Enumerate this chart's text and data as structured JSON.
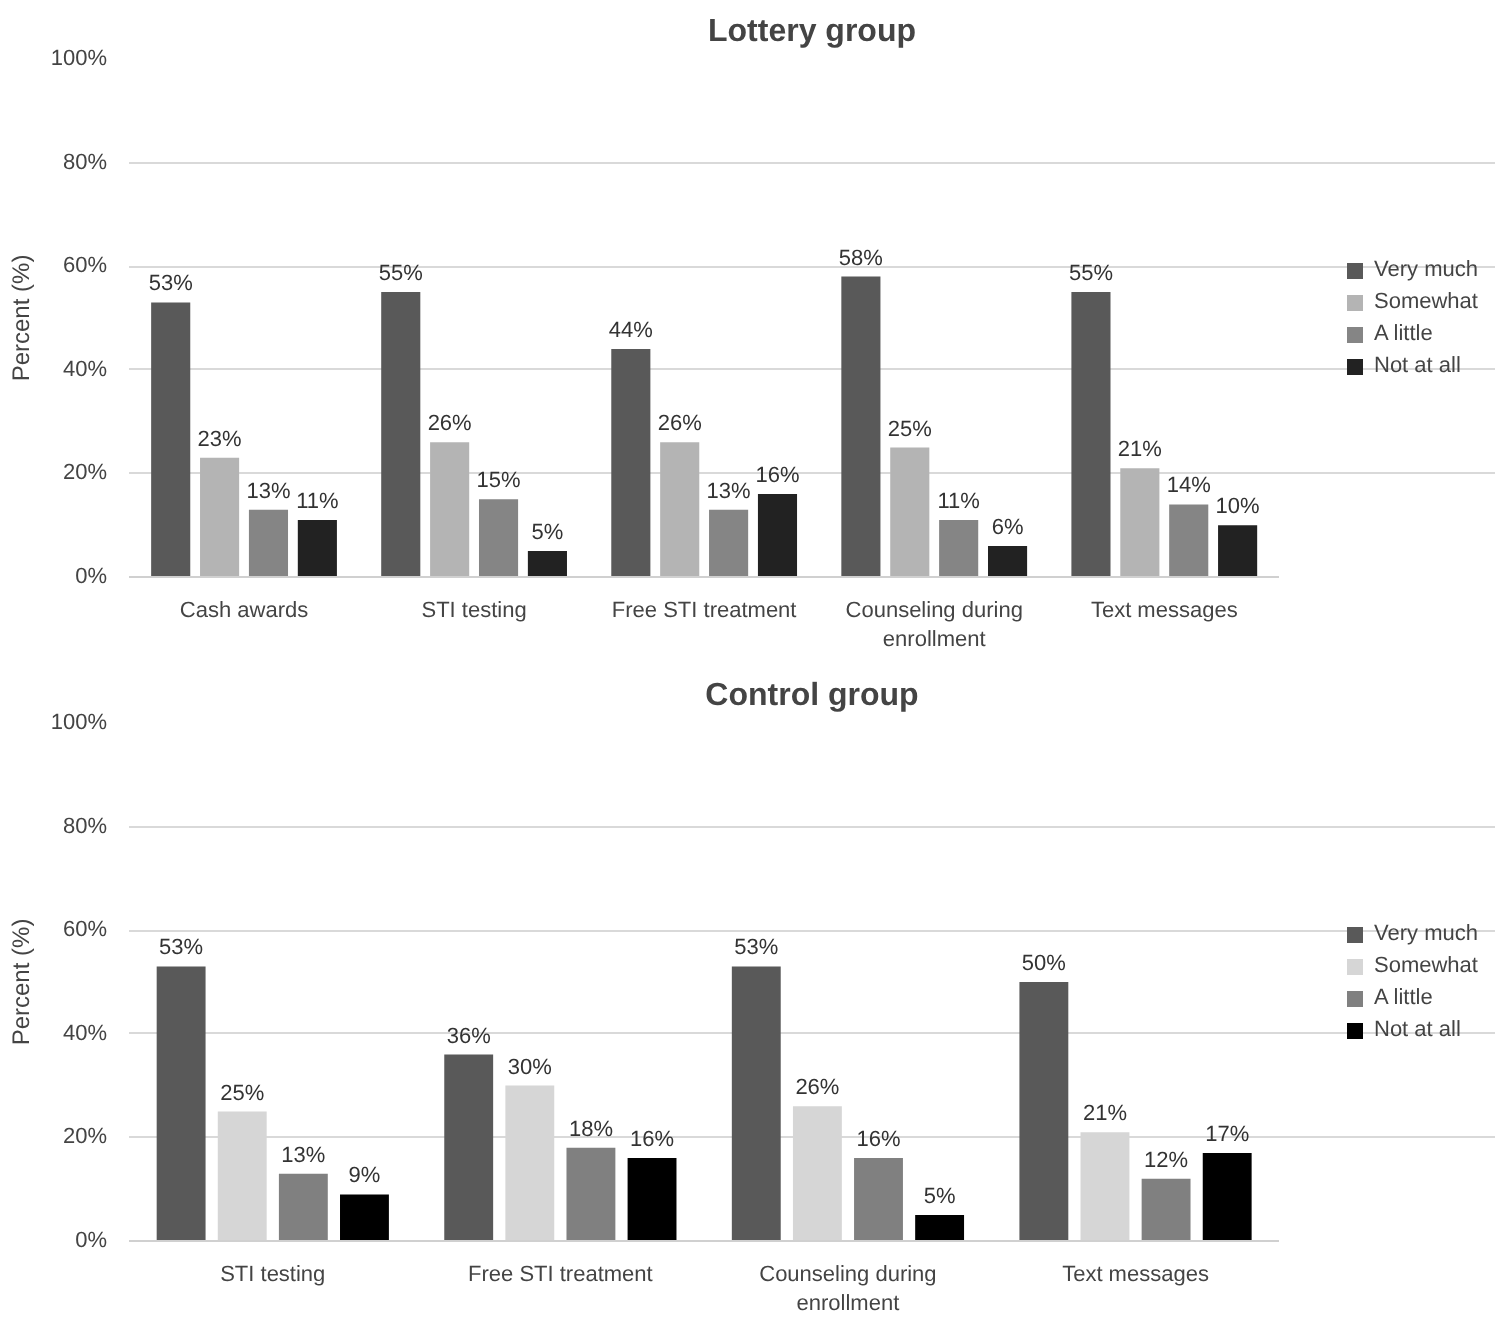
{
  "chart_data": [
    {
      "type": "bar",
      "title": "Lottery group",
      "ylabel": "Percent (%)",
      "categories": [
        "Cash awards",
        "STI testing",
        "Free STI treatment",
        "Counseling during\nenrollment",
        "Text messages"
      ],
      "series": [
        {
          "name": "Very much",
          "color": "#595959",
          "values": [
            53,
            55,
            44,
            58,
            55
          ],
          "value_labels": [
            "53%",
            "55%",
            "44%",
            "58%",
            "55%"
          ]
        },
        {
          "name": "Somewhat",
          "color": "#b4b4b4",
          "values": [
            23,
            26,
            26,
            25,
            21
          ],
          "value_labels": [
            "23%",
            "26%",
            "26%",
            "25%",
            "21%"
          ]
        },
        {
          "name": "A little",
          "color": "#858585",
          "values": [
            13,
            15,
            13,
            11,
            14
          ],
          "value_labels": [
            "13%",
            "15%",
            "13%",
            "11%",
            "14%"
          ]
        },
        {
          "name": "Not at all",
          "color": "#222222",
          "values": [
            11,
            5,
            16,
            6,
            10
          ],
          "value_labels": [
            "11%",
            "5%",
            "16%",
            "6%",
            "10%"
          ]
        }
      ],
      "ylim": [
        0,
        100
      ],
      "yticks": [
        {
          "value": 0,
          "label": "0%"
        },
        {
          "value": 20,
          "label": "20%"
        },
        {
          "value": 40,
          "label": "40%"
        },
        {
          "value": 60,
          "label": "60%"
        },
        {
          "value": 80,
          "label": "80%"
        },
        {
          "value": 100,
          "label": "100%"
        }
      ],
      "grid": "y",
      "legend": "right"
    },
    {
      "type": "bar",
      "title": "Control group",
      "ylabel": "Percent (%)",
      "categories": [
        "STI testing",
        "Free STI treatment",
        "Counseling during\nenrollment",
        "Text messages"
      ],
      "series": [
        {
          "name": "Very much",
          "color": "#595959",
          "values": [
            53,
            36,
            53,
            50
          ],
          "value_labels": [
            "53%",
            "36%",
            "53%",
            "50%"
          ]
        },
        {
          "name": "Somewhat",
          "color": "#d6d6d6",
          "values": [
            25,
            30,
            26,
            21
          ],
          "value_labels": [
            "25%",
            "30%",
            "26%",
            "21%"
          ]
        },
        {
          "name": "A little",
          "color": "#808080",
          "values": [
            13,
            18,
            16,
            12
          ],
          "value_labels": [
            "13%",
            "18%",
            "16%",
            "12%"
          ]
        },
        {
          "name": "Not at all",
          "color": "#000000",
          "values": [
            9,
            16,
            5,
            17
          ],
          "value_labels": [
            "9%",
            "16%",
            "5%",
            "17%"
          ]
        }
      ],
      "ylim": [
        0,
        100
      ],
      "yticks": [
        {
          "value": 0,
          "label": "0%"
        },
        {
          "value": 20,
          "label": "20%"
        },
        {
          "value": 40,
          "label": "40%"
        },
        {
          "value": 60,
          "label": "60%"
        },
        {
          "value": 80,
          "label": "80%"
        },
        {
          "value": 100,
          "label": "100%"
        }
      ],
      "grid": "y",
      "legend": "right"
    }
  ]
}
